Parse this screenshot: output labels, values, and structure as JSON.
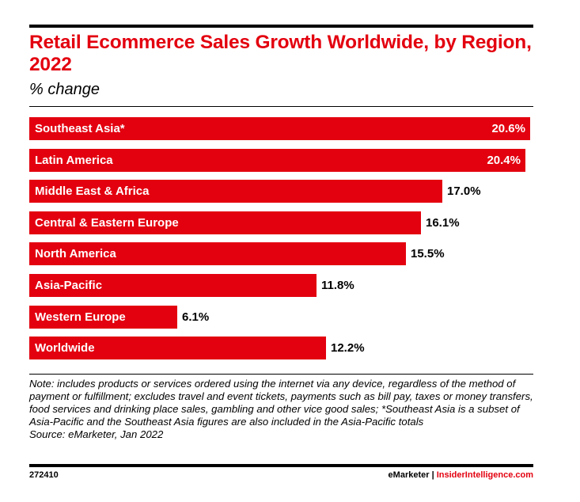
{
  "header": {
    "title": "Retail Ecommerce Sales Growth Worldwide, by Region, 2022",
    "subtitle": "% change"
  },
  "chart_data": {
    "type": "bar",
    "orientation": "horizontal",
    "title": "Retail Ecommerce Sales Growth Worldwide, by Region, 2022",
    "subtitle": "% change",
    "categories": [
      "Southeast Asia*",
      "Latin America",
      "Middle East & Africa",
      "Central & Eastern Europe",
      "North America",
      "Asia-Pacific",
      "Western Europe",
      "Worldwide"
    ],
    "values": [
      20.6,
      20.4,
      17.0,
      16.1,
      15.5,
      11.8,
      6.1,
      12.2
    ],
    "value_labels": [
      "20.6%",
      "20.4%",
      "17.0%",
      "16.1%",
      "15.5%",
      "11.8%",
      "6.1%",
      "12.2%"
    ],
    "bar_color": "#e3000f",
    "xlim": [
      0,
      20.6
    ],
    "grid": false,
    "legend": "none"
  },
  "note": "Note: includes products or services ordered using the internet via any device, regardless of the method of payment or fulfillment; excludes travel and event tickets, payments such as bill pay, taxes or money transfers, food services and drinking place sales, gambling and other vice good sales; *Southeast Asia is a subset of Asia-Pacific and the Southeast Asia figures are also included in the Asia-Pacific totals",
  "source": "Source: eMarketer, Jan 2022",
  "footer": {
    "chart_id": "272410",
    "brand_emarketer": "eMarketer",
    "separator": "|",
    "brand_insider": "InsiderIntelligence.com"
  },
  "colors": {
    "accent": "#e3000f",
    "text": "#000000",
    "background": "#ffffff"
  }
}
